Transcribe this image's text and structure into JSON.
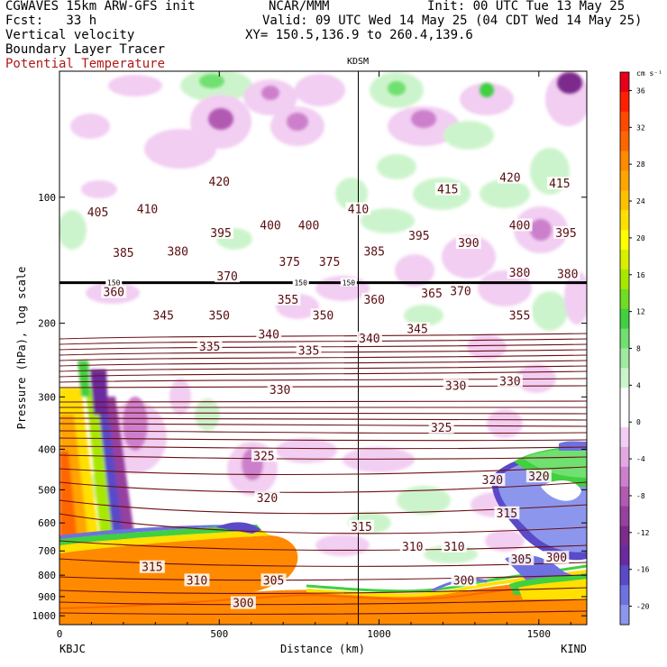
{
  "header": {
    "model": "CGWAVES 15km ARW-GFS init",
    "fcst": "Fcst:   33 h",
    "center": "NCAR/MMM",
    "init": "Init: 00 UTC Tue 13 May 25",
    "valid": "Valid: 09 UTC Wed 14 May 25 (04 CDT Wed 14 May 25)",
    "fields": [
      "Vertical velocity",
      "Boundary Layer Tracer"
    ],
    "field_red": "Potential Temperature",
    "xy": "XY= 150.5,136.9 to 260.4,139.6"
  },
  "chart_data": {
    "type": "cross-section",
    "ylabel": "Pressure (hPa), log scale",
    "xlabel": "Distance (km)",
    "xticks": [
      "0",
      "500",
      "1000",
      "1500"
    ],
    "xtick_values": [
      0,
      500,
      1000,
      1500
    ],
    "xlim": [
      0,
      1650
    ],
    "yticks": [
      "100",
      "200",
      "300",
      "400",
      "500",
      "600",
      "700",
      "800",
      "900",
      "1000"
    ],
    "ytick_values": [
      100,
      200,
      300,
      400,
      500,
      600,
      700,
      800,
      900,
      1000
    ],
    "ylim": [
      1050,
      50
    ],
    "yscale": "log",
    "left_station": "KBJC",
    "right_station": "KIND",
    "marker_station": "KDSM",
    "marker_x": 935,
    "tropopause_pressure": 160,
    "colorbar": {
      "unit": "cm s⁻¹",
      "labels": [
        "36",
        "32",
        "28",
        "24",
        "20",
        "16",
        "12",
        "8",
        "4",
        "0",
        "-4",
        "-8",
        "-12",
        "-16",
        "-20"
      ],
      "label_values": [
        36,
        32,
        28,
        24,
        20,
        16,
        12,
        8,
        4,
        0,
        -4,
        -8,
        -12,
        -16,
        -20
      ],
      "colors": [
        "#e8001a",
        "#ff2000",
        "#ff4800",
        "#ff6600",
        "#ff8a00",
        "#ffa500",
        "#ffc000",
        "#ffe000",
        "#ffff00",
        "#d8f000",
        "#a8e800",
        "#70dd20",
        "#40d040",
        "#70e070",
        "#a0eaa0",
        "#ccf4cc",
        "#ffffff",
        "#ffffff",
        "#f2cef2",
        "#e2a8e2",
        "#cc80cc",
        "#b25ab2",
        "#9640a0",
        "#7c2c8c",
        "#6a2aa0",
        "#5a4ac8",
        "#6e72e0",
        "#8c96ec"
      ]
    },
    "theta_labels": [
      {
        "text": "420",
        "x": 500,
        "p": 92
      },
      {
        "text": "415",
        "x": 1215,
        "p": 96
      },
      {
        "text": "420",
        "x": 1410,
        "p": 90
      },
      {
        "text": "415",
        "x": 1565,
        "p": 93
      },
      {
        "text": "405",
        "x": 120,
        "p": 109
      },
      {
        "text": "410",
        "x": 275,
        "p": 107
      },
      {
        "text": "410",
        "x": 935,
        "p": 107
      },
      {
        "text": "395",
        "x": 505,
        "p": 122
      },
      {
        "text": "400",
        "x": 660,
        "p": 117
      },
      {
        "text": "400",
        "x": 780,
        "p": 117
      },
      {
        "text": "395",
        "x": 1125,
        "p": 124
      },
      {
        "text": "390",
        "x": 1280,
        "p": 129
      },
      {
        "text": "400",
        "x": 1440,
        "p": 117
      },
      {
        "text": "395",
        "x": 1585,
        "p": 122
      },
      {
        "text": "385",
        "x": 200,
        "p": 136
      },
      {
        "text": "380",
        "x": 370,
        "p": 135
      },
      {
        "text": "375",
        "x": 720,
        "p": 143
      },
      {
        "text": "375",
        "x": 845,
        "p": 143
      },
      {
        "text": "385",
        "x": 985,
        "p": 135
      },
      {
        "text": "370",
        "x": 525,
        "p": 155
      },
      {
        "text": "370",
        "x": 1255,
        "p": 168
      },
      {
        "text": "380",
        "x": 1440,
        "p": 152
      },
      {
        "text": "380",
        "x": 1590,
        "p": 153
      },
      {
        "text": "360",
        "x": 170,
        "p": 169
      },
      {
        "text": "355",
        "x": 715,
        "p": 176
      },
      {
        "text": "360",
        "x": 985,
        "p": 176
      },
      {
        "text": "365",
        "x": 1165,
        "p": 170
      },
      {
        "text": "345",
        "x": 325,
        "p": 192
      },
      {
        "text": "350",
        "x": 500,
        "p": 192
      },
      {
        "text": "350",
        "x": 825,
        "p": 192
      },
      {
        "text": "345",
        "x": 1120,
        "p": 207
      },
      {
        "text": "355",
        "x": 1440,
        "p": 192
      },
      {
        "text": "340",
        "x": 655,
        "p": 213
      },
      {
        "text": "340",
        "x": 970,
        "p": 218
      },
      {
        "text": "335",
        "x": 470,
        "p": 228
      },
      {
        "text": "335",
        "x": 780,
        "p": 233
      },
      {
        "text": "330",
        "x": 690,
        "p": 289
      },
      {
        "text": "330",
        "x": 1240,
        "p": 283
      },
      {
        "text": "330",
        "x": 1410,
        "p": 276
      },
      {
        "text": "325",
        "x": 1195,
        "p": 356
      },
      {
        "text": "325",
        "x": 640,
        "p": 416
      },
      {
        "text": "320",
        "x": 1355,
        "p": 475
      },
      {
        "text": "320",
        "x": 1500,
        "p": 466
      },
      {
        "text": "320",
        "x": 650,
        "p": 524
      },
      {
        "text": "315",
        "x": 1400,
        "p": 570
      },
      {
        "text": "315",
        "x": 945,
        "p": 614
      },
      {
        "text": "310",
        "x": 1105,
        "p": 685
      },
      {
        "text": "310",
        "x": 1235,
        "p": 685
      },
      {
        "text": "315",
        "x": 290,
        "p": 767
      },
      {
        "text": "310",
        "x": 430,
        "p": 825
      },
      {
        "text": "305",
        "x": 670,
        "p": 825
      },
      {
        "text": "305",
        "x": 1445,
        "p": 735
      },
      {
        "text": "300",
        "x": 1555,
        "p": 728
      },
      {
        "text": "300",
        "x": 1265,
        "p": 825
      },
      {
        "text": "300",
        "x": 575,
        "p": 935
      }
    ],
    "tracer_labels": [
      {
        "text": "150",
        "x": 170,
        "p": 160
      },
      {
        "text": "150",
        "x": 755,
        "p": 160
      },
      {
        "text": "150",
        "x": 905,
        "p": 160
      }
    ]
  }
}
